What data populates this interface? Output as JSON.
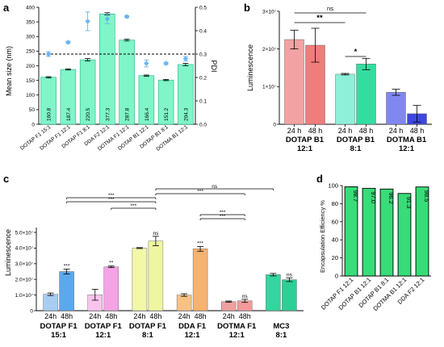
{
  "chart_data": [
    {
      "panel": "a",
      "type": "bar",
      "categories": [
        "DOTAP F1 15:1",
        "DOTAP F1 12:1",
        "DOTAP F1 8:1",
        "DDA F2 12:1",
        "DOTMA F1 12:1",
        "DOTAP B1 12:1",
        "DOTAP B1 8:1",
        "DOTMA B1 12:1"
      ],
      "values": [
        160.8,
        187.4,
        220.5,
        377.3,
        287.8,
        166.4,
        151.2,
        204.3
      ],
      "errors": [
        2,
        2,
        4,
        4,
        3,
        2,
        2,
        4
      ],
      "value_labels": [
        "160.8",
        "187.4",
        "220.5",
        "377.3",
        "287.8",
        "166.4",
        "151.2",
        "204.3"
      ],
      "pdi": [
        0.3,
        0.35,
        0.44,
        0.45,
        0.46,
        0.26,
        0.26,
        0.28
      ],
      "pdi_errors": [
        0.01,
        0.005,
        0.04,
        0.02,
        0.005,
        0.015,
        0.005,
        0.01
      ],
      "ylabel": "Mean size (nm)",
      "y2label": "PDI",
      "ylim": [
        0,
        400
      ],
      "y2lim": [
        0,
        0.5
      ],
      "yticks": [
        "0",
        "50",
        "100",
        "150",
        "200",
        "250",
        "300",
        "350",
        "400"
      ],
      "y2ticks": [
        "0.0",
        "0.1",
        "0.2",
        "0.3",
        "0.4",
        "0.5"
      ],
      "reference_line_pdi": 0.3,
      "bar_color": "#7FF5C8",
      "marker_color": "#6AB4F0"
    },
    {
      "panel": "b",
      "type": "bar",
      "ylabel": "Luminescence",
      "ylim": [
        0,
        30000000
      ],
      "yticks": [
        "0",
        "1×10⁷",
        "2×10⁷",
        "3×10⁷"
      ],
      "groups": [
        {
          "label_line1": "DOTAP B1",
          "label_line2": "12:1",
          "times": [
            "24 h",
            "48 h"
          ],
          "values": [
            22500000,
            21000000
          ],
          "errors": [
            2500000,
            4500000
          ],
          "colors": [
            "#F2A2A2",
            "#F27C7C"
          ]
        },
        {
          "label_line1": "DOTAP B1",
          "label_line2": "8:1",
          "times": [
            "24 h",
            "48 h"
          ],
          "values": [
            13300000,
            16000000
          ],
          "errors": [
            200000,
            1500000
          ],
          "colors": [
            "#8FF0DA",
            "#33DDA0"
          ]
        },
        {
          "label_line1": "DOTMA B1",
          "label_line2": "12:1",
          "times": [
            "24 h",
            "48 h"
          ],
          "values": [
            8500000,
            2800000
          ],
          "errors": [
            800000,
            2200000
          ],
          "colors": [
            "#8088F0",
            "#3E48E0"
          ]
        }
      ],
      "annotations": [
        "**",
        "ns",
        "*"
      ]
    },
    {
      "panel": "c",
      "type": "bar",
      "ylabel": "Luminescence",
      "ylim": [
        0,
        50000000
      ],
      "yticks": [
        "0",
        "1.0×10⁷",
        "2.0×10⁷",
        "3.0×10⁷",
        "4.0×10⁷",
        "5.0×10⁷"
      ],
      "groups": [
        {
          "label_line1": "DOTAP F1",
          "label_line2": "15:1",
          "times": [
            "24h",
            "48h"
          ],
          "values": [
            10500000,
            25000000
          ],
          "errors": [
            800000,
            1500000
          ],
          "sig": [
            "",
            "***"
          ],
          "colors": [
            "#A8CCF2",
            "#5BA8EE"
          ]
        },
        {
          "label_line1": "DOTAP F1",
          "label_line2": "12:1",
          "times": [
            "24h",
            "48h"
          ],
          "values": [
            10200000,
            28000000
          ],
          "errors": [
            3500000,
            500000
          ],
          "sig": [
            "",
            "**"
          ],
          "colors": [
            "#F8C4EC",
            "#F4A4E4"
          ]
        },
        {
          "label_line1": "DOTAP F1",
          "label_line2": "8:1",
          "times": [
            "24h",
            "48h"
          ],
          "values": [
            40000000,
            44500000
          ],
          "errors": [
            300000,
            3000000
          ],
          "sig": [
            "",
            "ns"
          ],
          "colors": [
            "#F2F8A8",
            "#EEF6A0"
          ]
        },
        {
          "label_line1": "DDA F1",
          "label_line2": "12:1",
          "times": [
            "24h",
            "48h"
          ],
          "values": [
            10000000,
            39500000
          ],
          "errors": [
            800000,
            1500000
          ],
          "sig": [
            "",
            "***"
          ],
          "colors": [
            "#F8C286",
            "#F6B270"
          ]
        },
        {
          "label_line1": "DOTMA F1",
          "label_line2": "12:1",
          "times": [
            "24h",
            "48h"
          ],
          "values": [
            5800000,
            6300000
          ],
          "errors": [
            400000,
            1000000
          ],
          "sig": [
            "",
            "ns"
          ],
          "colors": [
            "#F0A0A0",
            "#F39A9A"
          ]
        },
        {
          "label_line1": "MC3",
          "label_line2": "8:1",
          "times": [
            "",
            ""
          ],
          "values": [
            23000000,
            19800000
          ],
          "errors": [
            800000,
            1200000
          ],
          "sig": [
            "",
            "ns"
          ],
          "colors": [
            "#33D6A0",
            "#2CCF96"
          ]
        }
      ],
      "brackets": [
        "***",
        "***",
        "***",
        "***",
        "ns",
        "***",
        "***"
      ]
    },
    {
      "panel": "d",
      "type": "bar",
      "ylabel": "Encapsulation Efficiency %",
      "ylim": [
        0,
        100
      ],
      "yticks": [
        "0",
        "20",
        "40",
        "60",
        "80",
        "100"
      ],
      "categories": [
        "DOTAP F1 12:1",
        "DOTAP B1 12:1",
        "DOTAP B1 8:1",
        "DOTMA B1 12:1",
        "DDA F2 12:1"
      ],
      "values": [
        98.7,
        97.0,
        96.2,
        91.3,
        98.5
      ],
      "value_labels": [
        "98.7",
        "97.0",
        "96.2",
        "91.3",
        "98.5"
      ],
      "bar_color": "#38DC78"
    }
  ],
  "panel_letters": {
    "a": "a",
    "b": "b",
    "c": "c",
    "d": "d"
  }
}
